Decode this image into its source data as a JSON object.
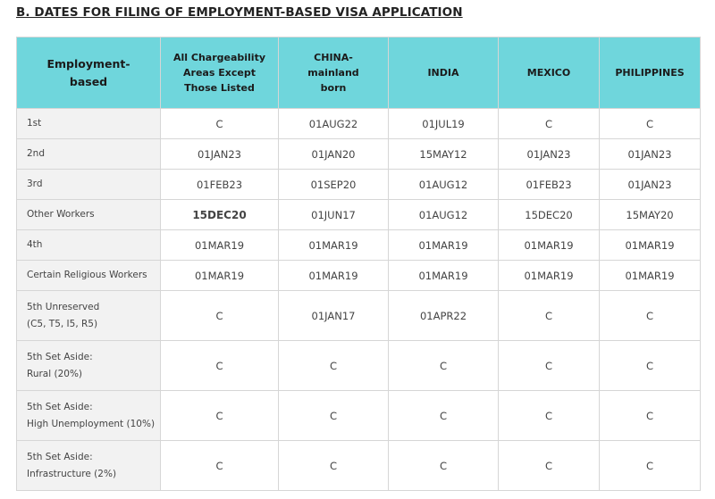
{
  "section": {
    "title": "B. DATES FOR FILING OF EMPLOYMENT-BASED VISA APPLICATION"
  },
  "table": {
    "headers": {
      "category": [
        "Employment-",
        "based"
      ],
      "all_areas": [
        "All Chargeability",
        "Areas Except",
        "Those Listed"
      ],
      "china": [
        "CHINA-",
        "mainland",
        "born"
      ],
      "india": [
        "INDIA"
      ],
      "mexico": [
        "MEXICO"
      ],
      "philippines": [
        "PHILIPPINES"
      ]
    },
    "rows": [
      {
        "label": [
          "1st"
        ],
        "values": [
          "C",
          "01AUG22",
          "01JUL19",
          "C",
          "C"
        ]
      },
      {
        "label": [
          "2nd"
        ],
        "values": [
          "01JAN23",
          "01JAN20",
          "15MAY12",
          "01JAN23",
          "01JAN23"
        ]
      },
      {
        "label": [
          "3rd"
        ],
        "values": [
          "01FEB23",
          "01SEP20",
          "01AUG12",
          "01FEB23",
          "01JAN23"
        ]
      },
      {
        "label": [
          "Other Workers"
        ],
        "values": [
          "15DEC20",
          "01JUN17",
          "01AUG12",
          "15DEC20",
          "15MAY20"
        ]
      },
      {
        "label": [
          "4th"
        ],
        "values": [
          "01MAR19",
          "01MAR19",
          "01MAR19",
          "01MAR19",
          "01MAR19"
        ]
      },
      {
        "label": [
          "Certain Religious Workers"
        ],
        "values": [
          "01MAR19",
          "01MAR19",
          "01MAR19",
          "01MAR19",
          "01MAR19"
        ]
      },
      {
        "label": [
          "5th Unreserved",
          "(C5, T5, I5, R5)"
        ],
        "values": [
          "C",
          "01JAN17",
          "01APR22",
          "C",
          "C"
        ]
      },
      {
        "label": [
          "5th Set Aside:",
          "Rural (20%)"
        ],
        "values": [
          "C",
          "C",
          "C",
          "C",
          "C"
        ]
      },
      {
        "label": [
          "5th Set Aside:",
          "High Unemployment (10%)"
        ],
        "values": [
          "C",
          "C",
          "C",
          "C",
          "C"
        ]
      },
      {
        "label": [
          "5th Set Aside:",
          "Infrastructure (2%)"
        ],
        "values": [
          "C",
          "C",
          "C",
          "C",
          "C"
        ]
      }
    ]
  },
  "colors": {
    "header_bg": "#6fd6dc",
    "label_bg": "#f2f2f2",
    "highlight": "#c00000",
    "border": "#d6d6d6"
  }
}
